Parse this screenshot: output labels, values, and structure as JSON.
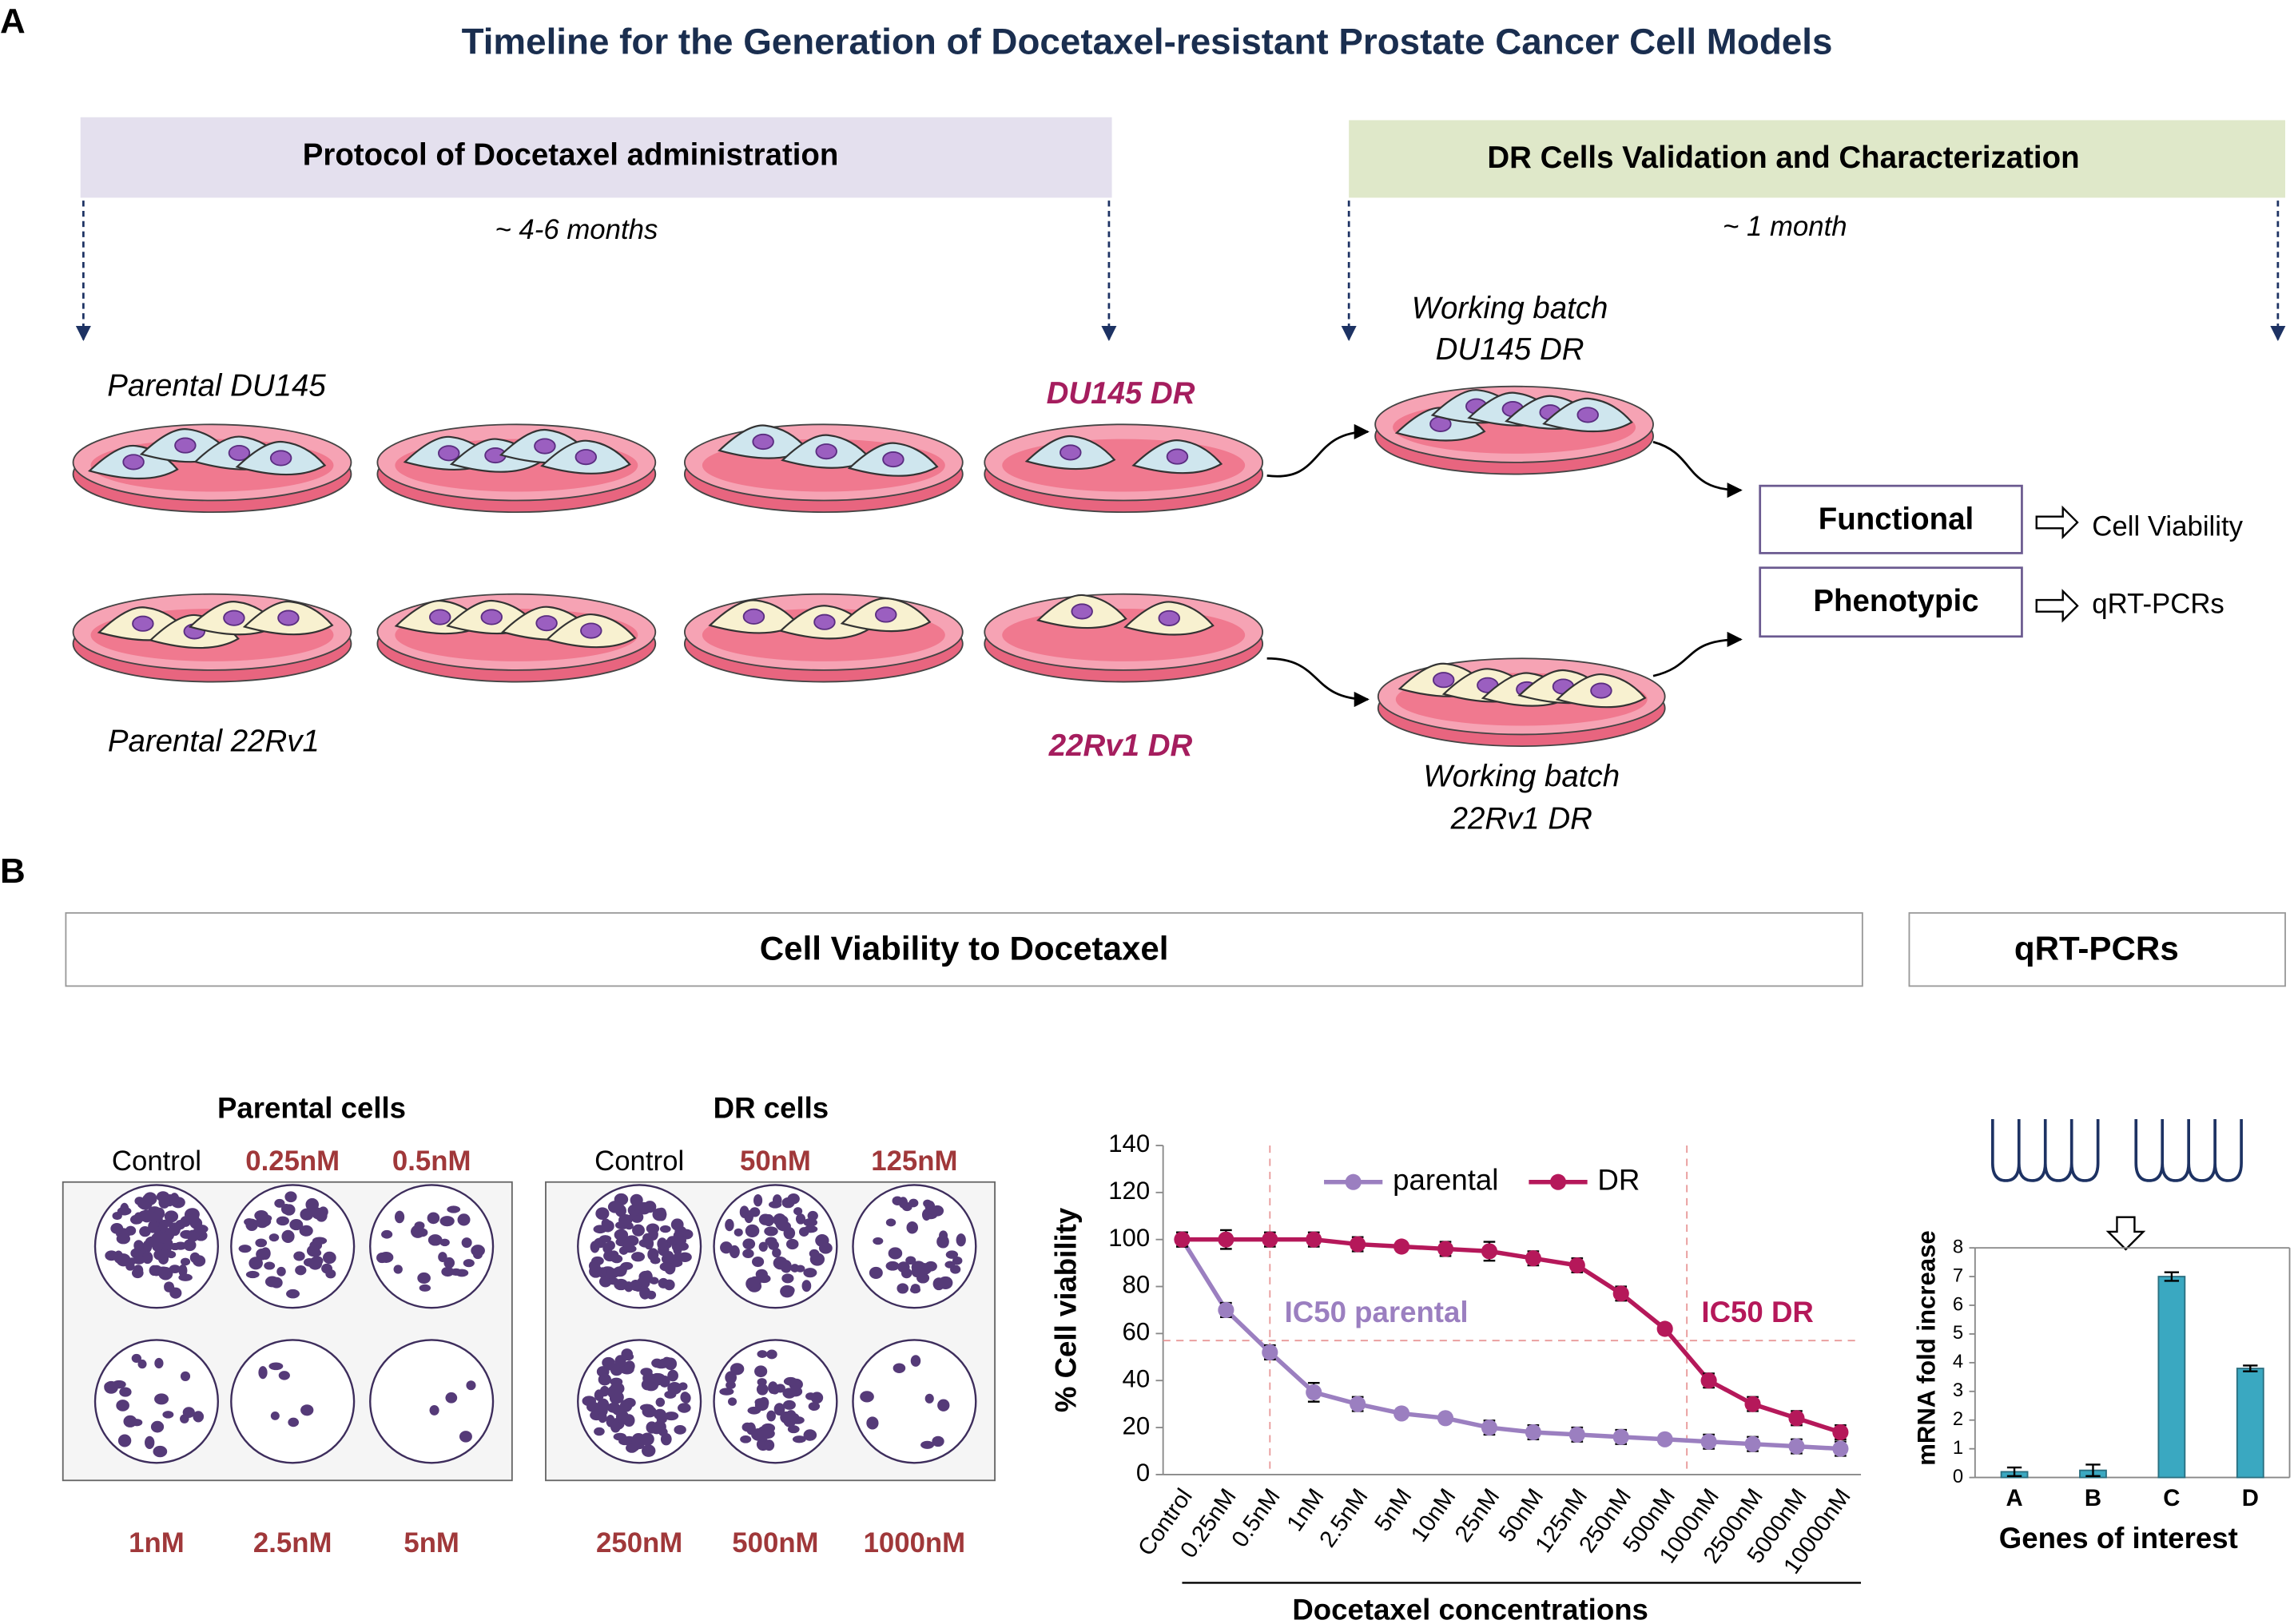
{
  "panel_labels": [
    "A",
    "B"
  ],
  "title": "Timeline for the Generation of Docetaxel-resistant Prostate Cancer Cell Models",
  "panel_a": {
    "protocol_header": "Protocol of Docetaxel administration",
    "validation_header": "DR Cells Validation and Characterization",
    "protocol_duration": "~ 4-6 months",
    "validation_duration": "~ 1 month",
    "parental_du145": "Parental DU145",
    "du145_dr": "DU145 DR",
    "parental_22rv1": "Parental 22Rv1",
    "rv1_dr": "22Rv1 DR",
    "working_du145": [
      "Working batch",
      "DU145 DR"
    ],
    "working_22rv1": [
      "Working batch",
      "22Rv1 DR"
    ],
    "assays": [
      {
        "label": "Functional",
        "result": "Cell Viability"
      },
      {
        "label": "Phenotypic",
        "result": "qRT-PCRs"
      }
    ]
  },
  "panel_b": {
    "viability_header": "Cell Viability to Docetaxel",
    "qrt_header": "qRT-PCRs",
    "parental_title": "Parental cells",
    "dr_title": "DR cells",
    "parental_wells": [
      "Control",
      "0.25nM",
      "0.5nM",
      "1nM",
      "2.5nM",
      "5nM"
    ],
    "dr_wells": [
      "Control",
      "50nM",
      "125nM",
      "250nM",
      "500nM",
      "1000nM"
    ]
  },
  "chart_data": [
    {
      "type": "line",
      "xlabel": "Docetaxel concentrations",
      "ylabel": "% Cell viability",
      "categories": [
        "Control",
        "0.25nM",
        "0.5nM",
        "1nM",
        "2.5nM",
        "5nM",
        "10nM",
        "25nM",
        "50nM",
        "125nM",
        "250nM",
        "500nM",
        "1000nM",
        "2500nM",
        "5000nM",
        "10000nM"
      ],
      "series": [
        {
          "name": "parental",
          "color": "#9b7fc0",
          "values": [
            100,
            70,
            52,
            35,
            30,
            26,
            24,
            20,
            18,
            17,
            16,
            15,
            14,
            13,
            12,
            11
          ],
          "errors": [
            3,
            3,
            3,
            4,
            3,
            2,
            2,
            3,
            3,
            3,
            3,
            2,
            3,
            3,
            3,
            3
          ]
        },
        {
          "name": "DR",
          "color": "#b5185a",
          "values": [
            100,
            100,
            100,
            100,
            98,
            97,
            96,
            95,
            92,
            89,
            77,
            62,
            40,
            30,
            24,
            18
          ],
          "errors": [
            3,
            4,
            3,
            3,
            3,
            2,
            3,
            4,
            3,
            3,
            3,
            2,
            3,
            3,
            3,
            3
          ]
        }
      ],
      "annotations": [
        {
          "text": "IC50 parental",
          "x": 2,
          "y": 57
        },
        {
          "text": "IC50 DR",
          "x": 11.5,
          "y": 57
        }
      ],
      "ylim": [
        0,
        140
      ],
      "yticks": [
        0,
        20,
        40,
        60,
        80,
        100,
        120,
        140
      ]
    },
    {
      "type": "bar",
      "xlabel": "Genes of interest",
      "ylabel": "mRNA fold increase",
      "categories": [
        "A",
        "B",
        "C",
        "D"
      ],
      "values": [
        0.2,
        0.25,
        7,
        3.8
      ],
      "errors": [
        0.15,
        0.2,
        0.15,
        0.1
      ],
      "color": "#3aa8c1",
      "ylim": [
        0,
        8
      ],
      "yticks": [
        0,
        1,
        2,
        3,
        4,
        5,
        6,
        7,
        8
      ]
    }
  ]
}
